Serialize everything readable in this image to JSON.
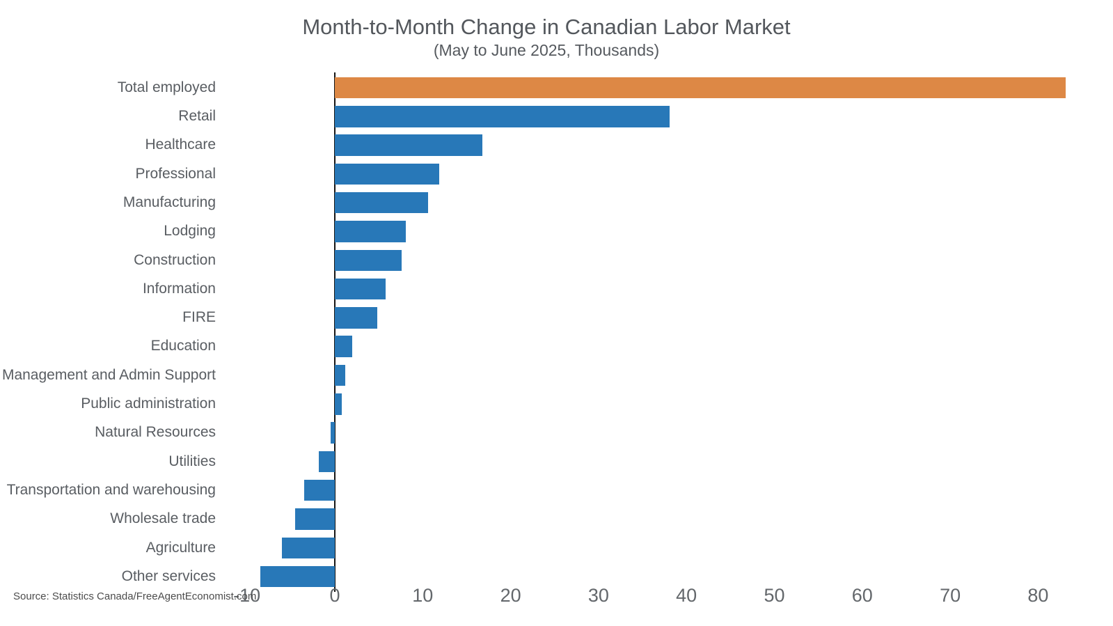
{
  "header": {
    "title": "Month-to-Month Change in Canadian Labor Market",
    "subtitle": "(May to June 2025, Thousands)"
  },
  "footer": {
    "source": "Source: Statistics Canada/FreeAgentEconomist.com"
  },
  "colors": {
    "bar_default": "#2878B8",
    "bar_highlight": "#DD8845",
    "axis_line": "#141414",
    "title_text": "#53575C",
    "label_text": "#595D62",
    "tick_text": "#63676B"
  },
  "chart_data": {
    "type": "bar",
    "orientation": "horizontal",
    "title": "Month-to-Month Change in Canadian Labor Market",
    "subtitle": "(May to June 2025, Thousands)",
    "xlabel": "",
    "ylabel": "",
    "categories": [
      "Total employed",
      "Retail",
      "Healthcare",
      "Professional",
      "Manufacturing",
      "Lodging",
      "Construction",
      "Information",
      "FIRE",
      "Education",
      "Management and Admin Support",
      "Public administration",
      "Natural Resources",
      "Utilities",
      "Transportation and warehousing",
      "Wholesale trade",
      "Agriculture",
      "Other services"
    ],
    "values": [
      83.1,
      38.1,
      16.8,
      11.9,
      10.6,
      8.1,
      7.6,
      5.8,
      4.8,
      2.0,
      1.2,
      0.8,
      -0.5,
      -1.8,
      -3.5,
      -4.5,
      -6.0,
      -8.5
    ],
    "highlight": {
      "category": "Total employed",
      "color": "#DD8845"
    },
    "bar_color": "#2878B8",
    "xticks": [
      -10,
      0,
      10,
      20,
      30,
      40,
      50,
      60,
      70,
      80
    ],
    "xlim": [
      -13,
      88.5
    ],
    "grid": false,
    "legend": false,
    "zero_line": true,
    "source": "Source: Statistics Canada/FreeAgentEconomist.com"
  }
}
